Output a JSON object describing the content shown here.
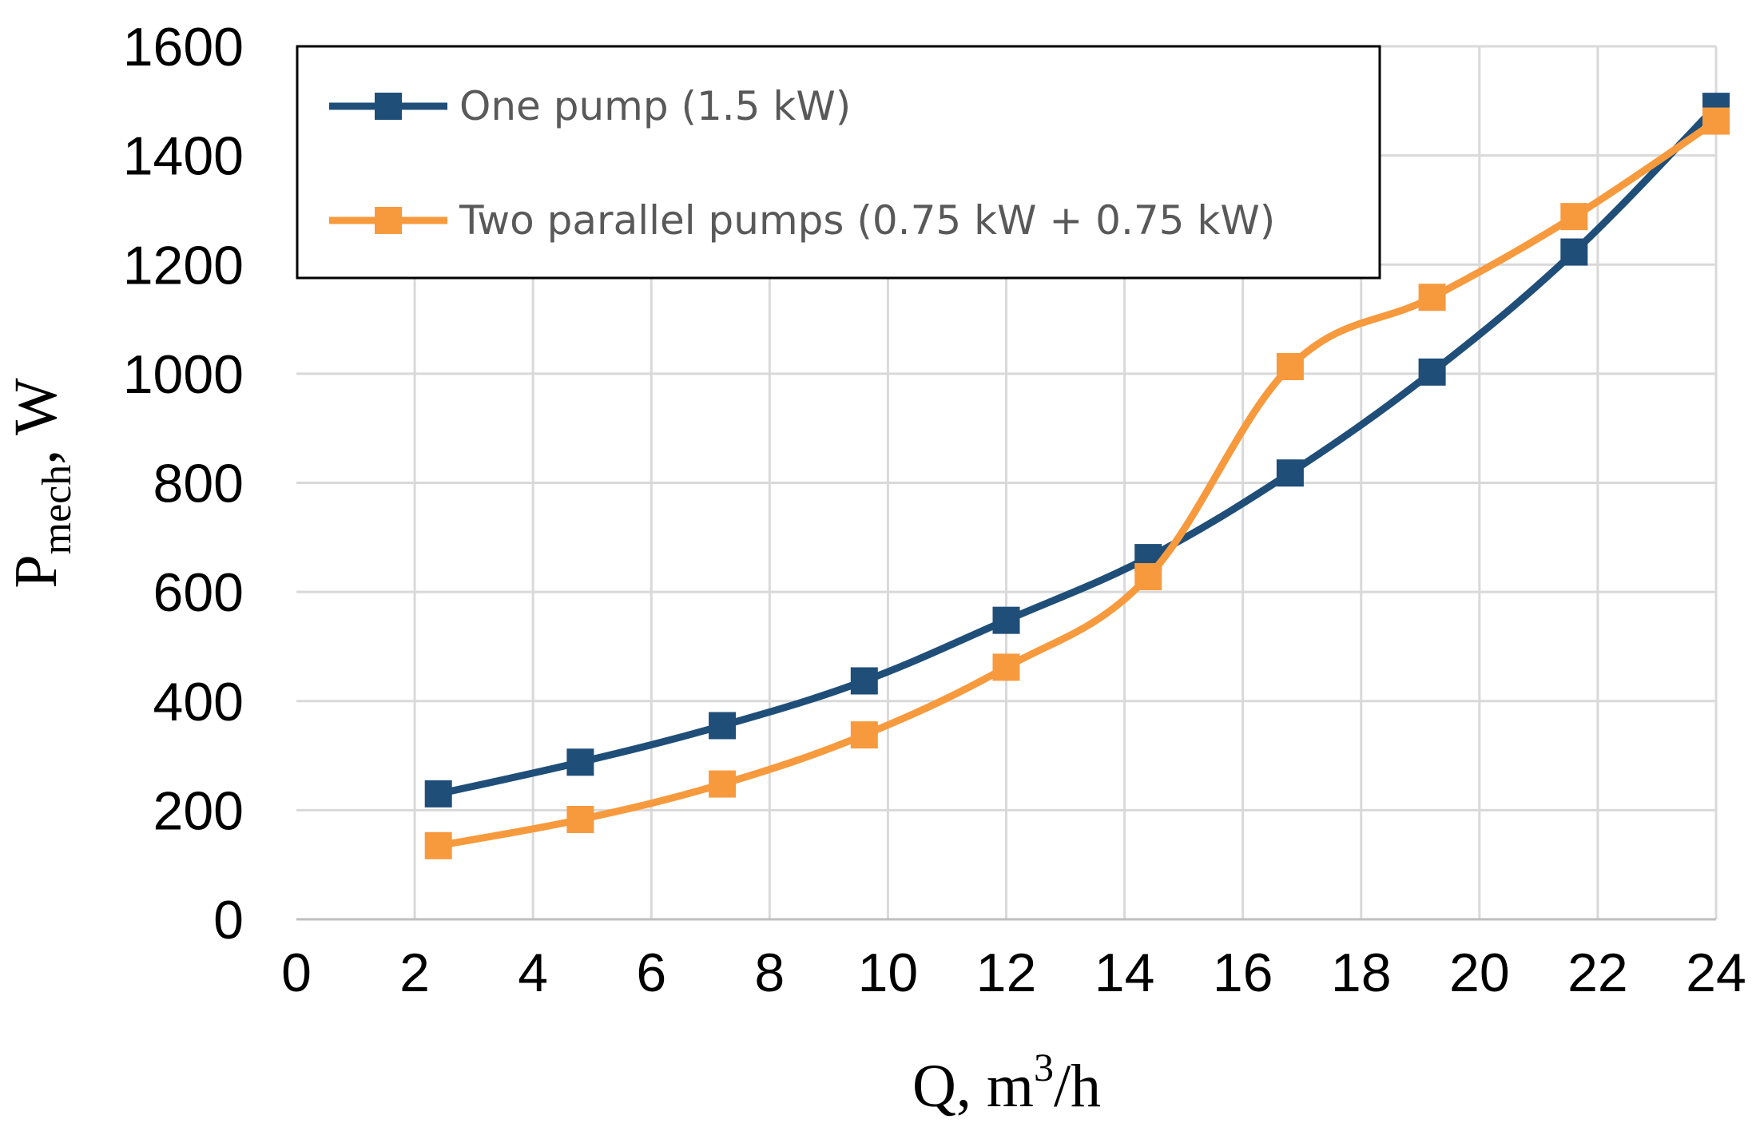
{
  "chart_data": {
    "type": "line",
    "title": "",
    "xlabel": {
      "main": "Q, m",
      "sup": "3",
      "tail": "/h"
    },
    "ylabel": {
      "main": "P",
      "sub": "mech",
      "tail": ", W"
    },
    "xlim": [
      0,
      24
    ],
    "ylim": [
      0,
      1600
    ],
    "x_ticks": [
      "0",
      "2",
      "4",
      "6",
      "8",
      "10",
      "12",
      "14",
      "16",
      "18",
      "20",
      "22",
      "24"
    ],
    "y_ticks": [
      "0",
      "200",
      "400",
      "600",
      "800",
      "1000",
      "1200",
      "1400",
      "1600"
    ],
    "grid": true,
    "legend_position": "top-left",
    "series": [
      {
        "name": "One pump (1.5 kW)",
        "color": "#1f4e79",
        "marker": "square",
        "x": [
          2.4,
          4.8,
          7.2,
          9.6,
          12.0,
          14.4,
          16.8,
          19.2,
          21.6,
          24.0
        ],
        "y": [
          230,
          288,
          355,
          437,
          548,
          663,
          818,
          1003,
          1223,
          1490
        ]
      },
      {
        "name": "Two parallel pumps (0.75 kW + 0.75 kW)",
        "color": "#f79a3e",
        "marker": "square",
        "x": [
          2.4,
          4.8,
          7.2,
          9.6,
          12.0,
          14.4,
          16.8,
          19.2,
          21.6,
          24.0
        ],
        "y": [
          135,
          183,
          248,
          338,
          462,
          628,
          1013,
          1140,
          1288,
          1463
        ]
      }
    ]
  }
}
